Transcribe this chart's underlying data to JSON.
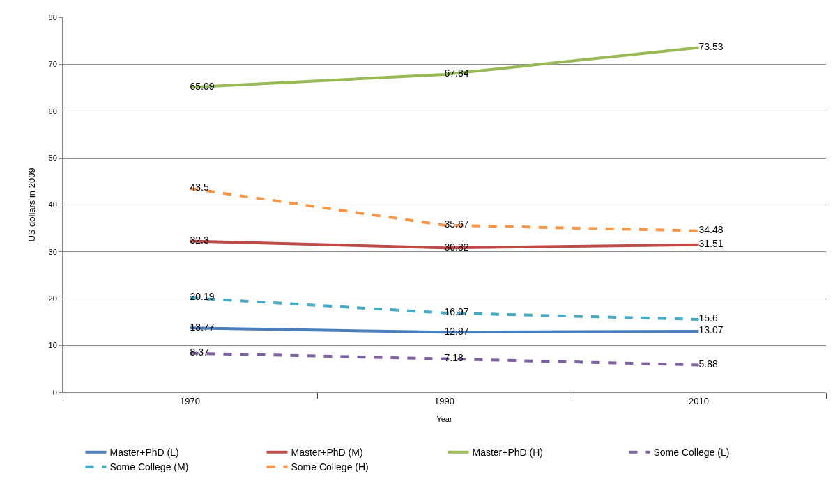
{
  "chart_data": {
    "type": "line",
    "xlabel": "Year",
    "ylabel": "US dollars in 2009",
    "categories": [
      "1970",
      "1990",
      "2010"
    ],
    "series": [
      {
        "name": "Master+PhD (L)",
        "color": "#4a7ebb",
        "values": [
          13.77,
          12.87,
          13.07
        ],
        "line_style": "solid"
      },
      {
        "name": "Master+PhD (M)",
        "color": "#be4b48",
        "values": [
          32.3,
          30.82,
          31.51
        ],
        "line_style": "solid"
      },
      {
        "name": "Master+PhD (H)",
        "color": "#98b954",
        "values": [
          65.09,
          67.84,
          73.53
        ],
        "line_style": "solid"
      },
      {
        "name": "Some College (L)",
        "color": "#7d60a0",
        "values": [
          8.37,
          7.18,
          5.88
        ],
        "line_style": "dashed"
      },
      {
        "name": "Some College (M)",
        "color": "#46aac5",
        "values": [
          20.19,
          16.97,
          15.6
        ],
        "line_style": "dashed"
      },
      {
        "name": "Some College (H)",
        "color": "#f79646",
        "values": [
          43.5,
          35.67,
          34.48
        ],
        "line_style": "dashed"
      }
    ],
    "ylim": [
      0,
      80
    ],
    "yticks": [
      0,
      10,
      20,
      30,
      40,
      50,
      60,
      70,
      80
    ],
    "grid": "y",
    "legend": "bottom",
    "data_labels": true,
    "marker": "none"
  }
}
